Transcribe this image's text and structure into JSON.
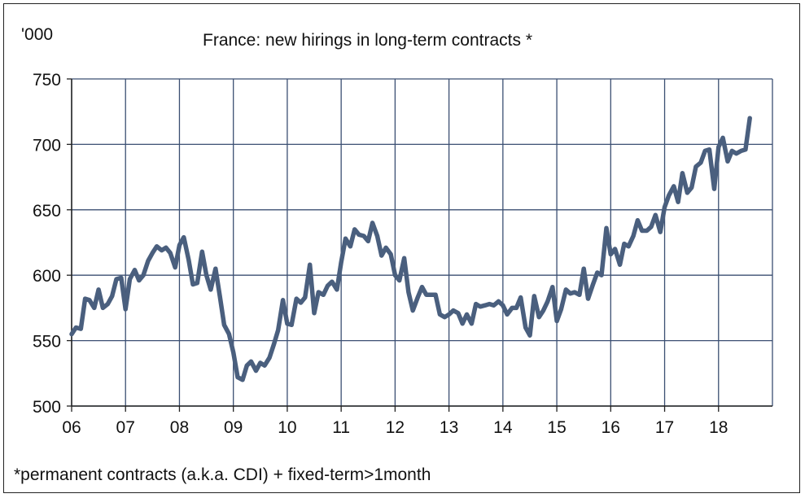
{
  "chart_data": {
    "type": "line",
    "title": "France: new hirings in long-term contracts *",
    "ylabel": "'000",
    "footnote": "*permanent contracts (a.k.a. CDI) + fixed-term>1month",
    "ylim": [
      500,
      750
    ],
    "yticks": [
      500,
      550,
      600,
      650,
      700,
      750
    ],
    "xlim": [
      2006,
      2019
    ],
    "xticks": [
      {
        "value": 2006,
        "label": "06"
      },
      {
        "value": 2007,
        "label": "07"
      },
      {
        "value": 2008,
        "label": "08"
      },
      {
        "value": 2009,
        "label": "09"
      },
      {
        "value": 2010,
        "label": "10"
      },
      {
        "value": 2011,
        "label": "11"
      },
      {
        "value": 2012,
        "label": "12"
      },
      {
        "value": 2013,
        "label": "13"
      },
      {
        "value": 2014,
        "label": "14"
      },
      {
        "value": 2015,
        "label": "15"
      },
      {
        "value": 2016,
        "label": "16"
      },
      {
        "value": 2017,
        "label": "17"
      },
      {
        "value": 2018,
        "label": "18"
      }
    ],
    "grid": true,
    "line_color": "#4a5f7e",
    "grid_color": "#3b4f72",
    "series": [
      {
        "x": [
          2006.0,
          2006.08,
          2006.17,
          2006.25,
          2006.33,
          2006.42,
          2006.5,
          2006.58,
          2006.67,
          2006.75,
          2006.83,
          2006.92,
          2007.0,
          2007.08,
          2007.17,
          2007.25,
          2007.33,
          2007.42,
          2007.5,
          2007.58,
          2007.67,
          2007.75,
          2007.83,
          2007.92,
          2008.0,
          2008.08,
          2008.17,
          2008.25,
          2008.33,
          2008.42,
          2008.5,
          2008.58,
          2008.67,
          2008.75,
          2008.83,
          2008.92,
          2009.0,
          2009.08,
          2009.17,
          2009.25,
          2009.33,
          2009.42,
          2009.5,
          2009.58,
          2009.67,
          2009.75,
          2009.83,
          2009.92,
          2010.0,
          2010.08,
          2010.17,
          2010.25,
          2010.33,
          2010.42,
          2010.5,
          2010.58,
          2010.67,
          2010.75,
          2010.83,
          2010.92,
          2011.0,
          2011.08,
          2011.17,
          2011.25,
          2011.33,
          2011.42,
          2011.5,
          2011.58,
          2011.67,
          2011.75,
          2011.83,
          2011.92,
          2012.0,
          2012.08,
          2012.17,
          2012.25,
          2012.33,
          2012.42,
          2012.5,
          2012.58,
          2012.67,
          2012.75,
          2012.83,
          2012.92,
          2013.0,
          2013.08,
          2013.17,
          2013.25,
          2013.33,
          2013.42,
          2013.5,
          2013.58,
          2013.67,
          2013.75,
          2013.83,
          2013.92,
          2014.0,
          2014.08,
          2014.17,
          2014.25,
          2014.33,
          2014.42,
          2014.5,
          2014.58,
          2014.67,
          2014.75,
          2014.83,
          2014.92,
          2015.0,
          2015.08,
          2015.17,
          2015.25,
          2015.33,
          2015.42,
          2015.5,
          2015.58,
          2015.67,
          2015.75,
          2015.83,
          2015.92,
          2016.0,
          2016.08,
          2016.17,
          2016.25,
          2016.33,
          2016.42,
          2016.5,
          2016.58,
          2016.67,
          2016.75,
          2016.83,
          2016.92,
          2017.0,
          2017.08,
          2017.17,
          2017.25,
          2017.33,
          2017.42,
          2017.5,
          2017.58,
          2017.67,
          2017.75,
          2017.83,
          2017.92,
          2018.0,
          2018.08,
          2018.17,
          2018.25,
          2018.33,
          2018.42,
          2018.5,
          2018.58
        ],
        "y": [
          555,
          560,
          559,
          582,
          581,
          575,
          589,
          575,
          578,
          584,
          597,
          598,
          574,
          597,
          604,
          596,
          600,
          611,
          617,
          622,
          619,
          621,
          617,
          606,
          623,
          629,
          612,
          593,
          594,
          618,
          600,
          589,
          605,
          584,
          562,
          555,
          541,
          522,
          520,
          531,
          534,
          527,
          533,
          531,
          537,
          547,
          558,
          581,
          563,
          562,
          582,
          579,
          583,
          608,
          571,
          587,
          585,
          592,
          595,
          589,
          610,
          628,
          622,
          635,
          631,
          630,
          626,
          640,
          630,
          615,
          621,
          616,
          600,
          596,
          613,
          587,
          573,
          583,
          591,
          585,
          585,
          585,
          570,
          568,
          570,
          573,
          571,
          563,
          570,
          563,
          578,
          576,
          577,
          578,
          577,
          580,
          577,
          570,
          575,
          575,
          583,
          560,
          554,
          584,
          568,
          573,
          580,
          591,
          565,
          574,
          589,
          586,
          587,
          585,
          605,
          582,
          593,
          602,
          600,
          636,
          616,
          620,
          608,
          624,
          622,
          630,
          642,
          634,
          634,
          637,
          646,
          633,
          652,
          661,
          668,
          656,
          678,
          663,
          667,
          683,
          686,
          695,
          696,
          666,
          698,
          705,
          687,
          695,
          693,
          695,
          696,
          720
        ]
      }
    ]
  }
}
